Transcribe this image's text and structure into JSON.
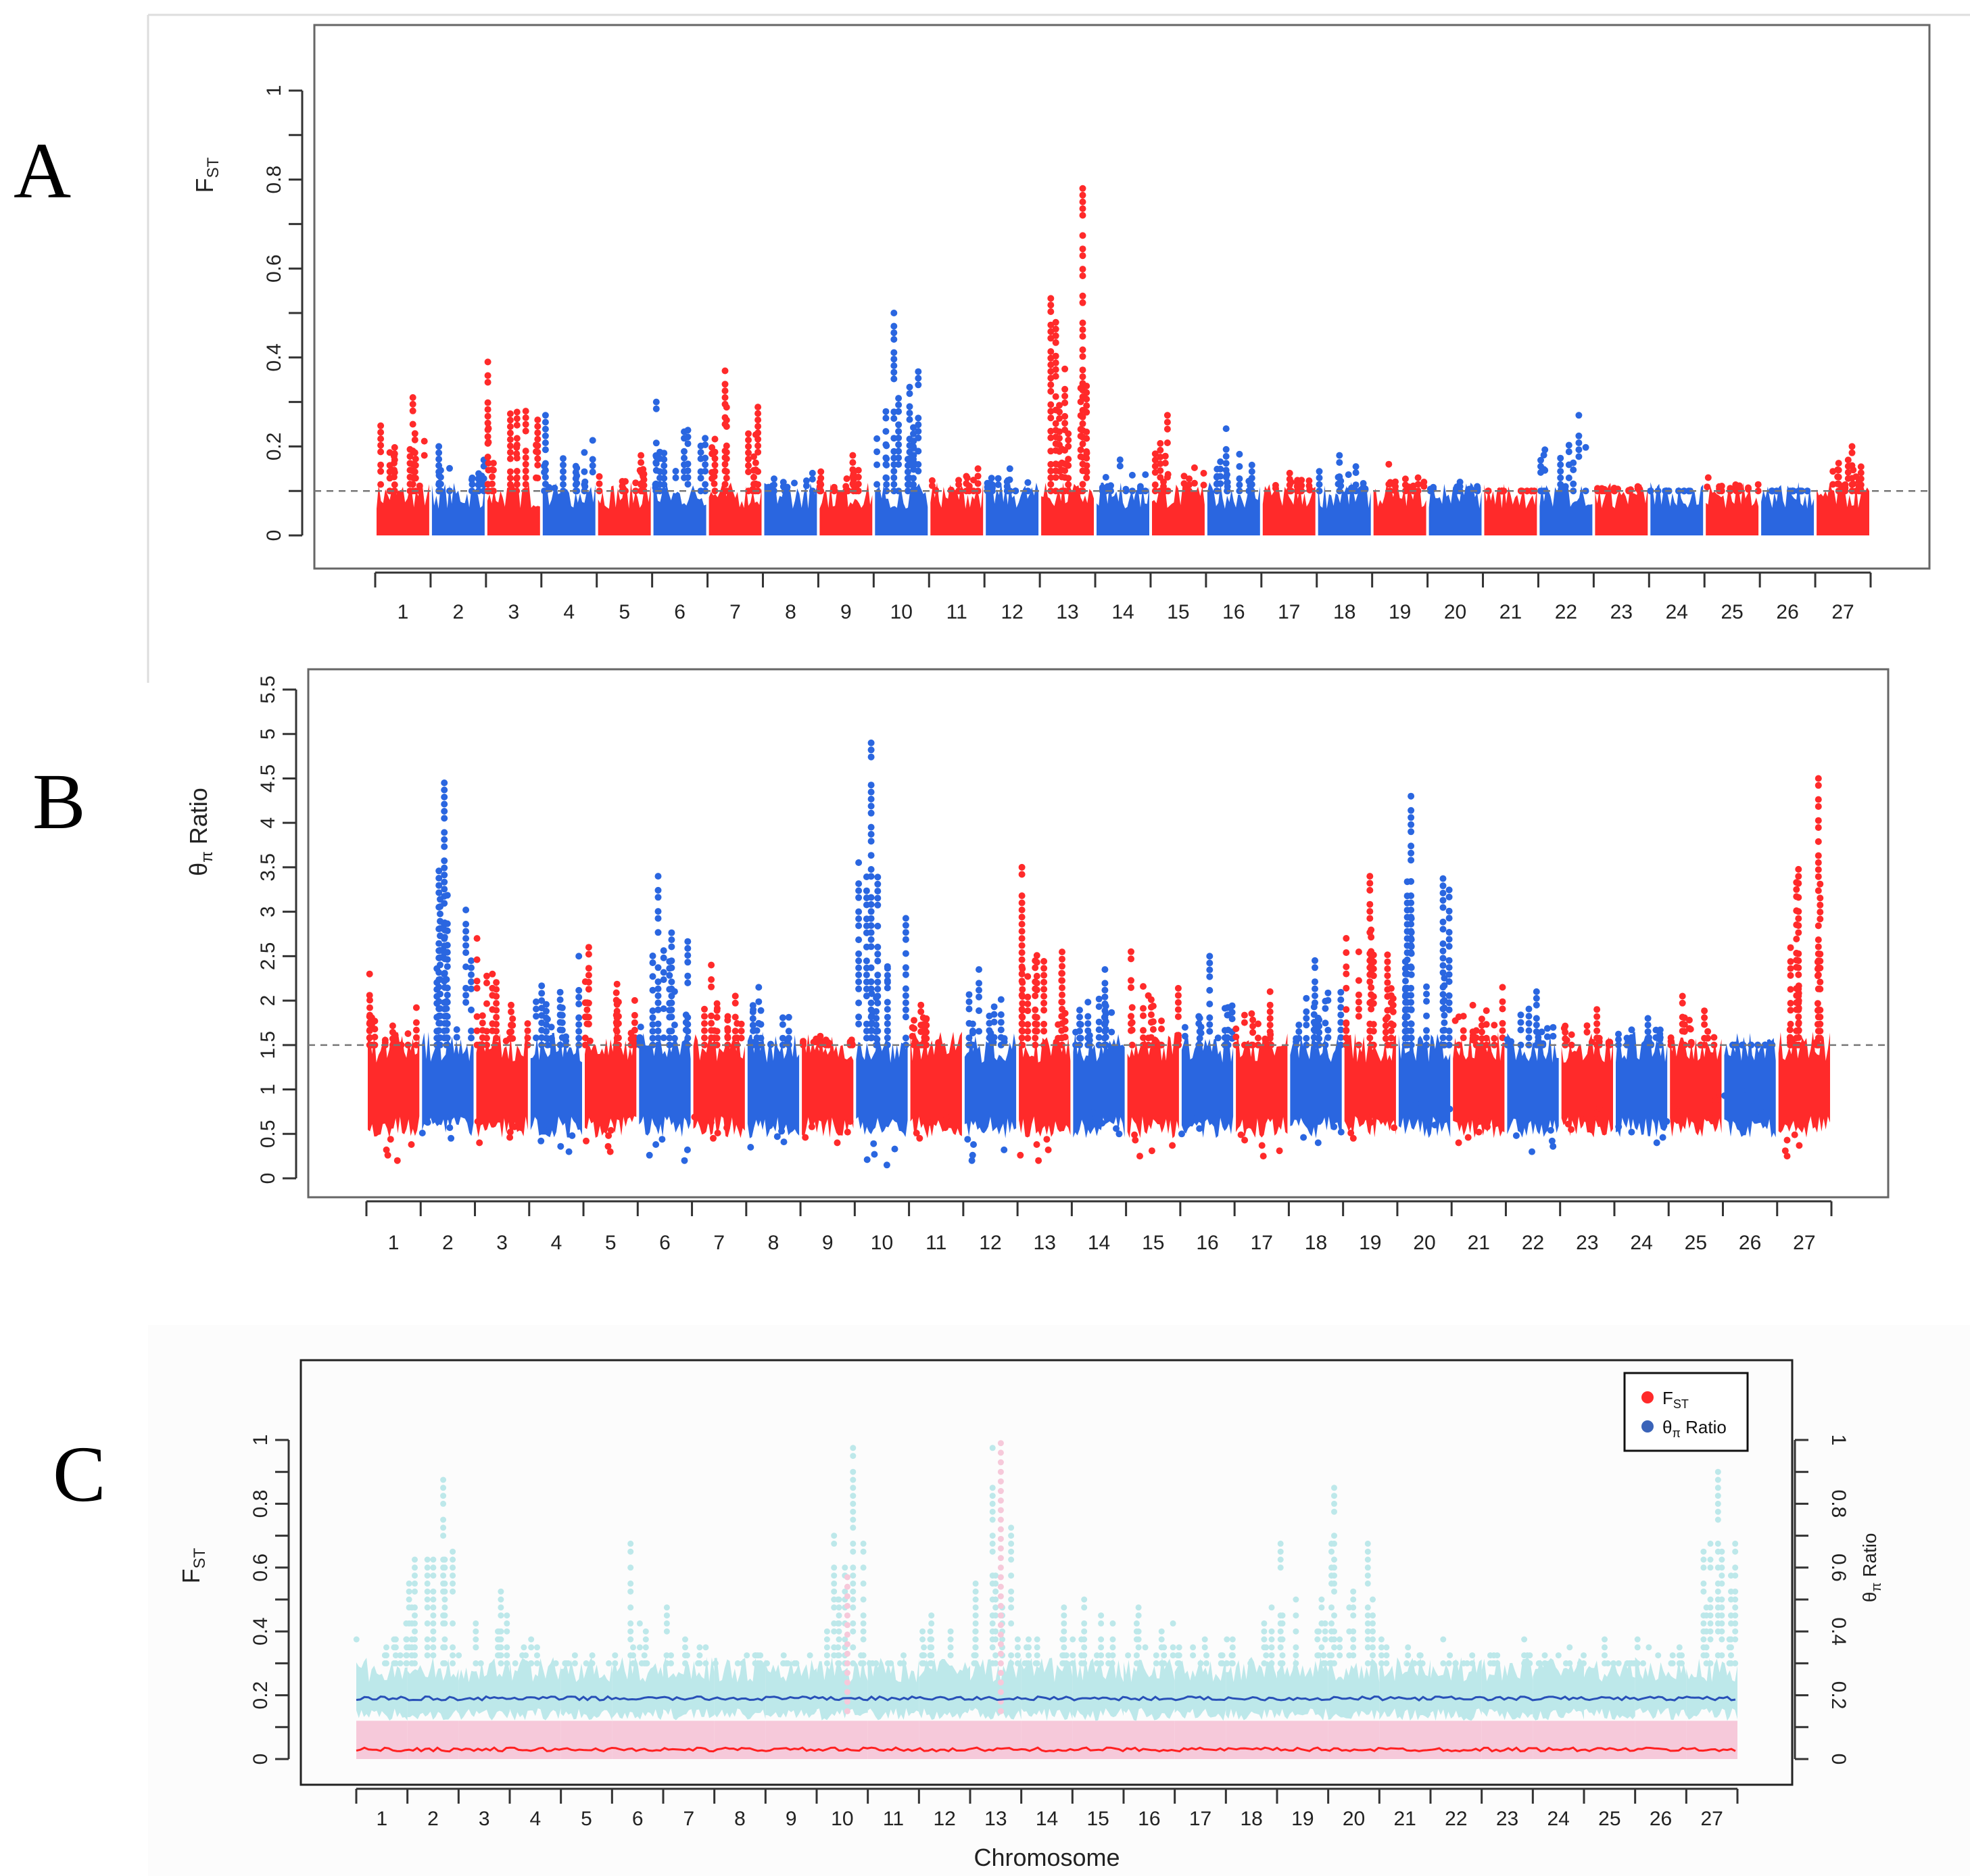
{
  "colors": {
    "red": "#ff2a2a",
    "blue": "#2a66e0",
    "pink": "#f6c9da",
    "cyan": "#bde8ea",
    "fst_line": "#ff2020",
    "ratio_line": "#2850b8"
  },
  "chart_data": [
    {
      "panel": "A",
      "type": "scatter",
      "ylabel": "F",
      "ylabel_sub": "ST",
      "ylim": [
        0,
        1.1
      ],
      "yticks": [
        "0",
        "0.2",
        "0.4",
        "0.6",
        "0.8",
        "1"
      ],
      "ytick_values": [
        0,
        0.2,
        0.4,
        0.6,
        0.8,
        1
      ],
      "threshold": 0.1,
      "categories": [
        "1",
        "2",
        "3",
        "4",
        "5",
        "6",
        "7",
        "8",
        "9",
        "10",
        "11",
        "12",
        "13",
        "14",
        "15",
        "16",
        "17",
        "18",
        "19",
        "20",
        "21",
        "22",
        "23",
        "24",
        "25",
        "26",
        "27"
      ],
      "max_values": [
        0.31,
        0.2,
        0.39,
        0.27,
        0.18,
        0.3,
        0.37,
        0.14,
        0.18,
        0.5,
        0.15,
        0.15,
        0.78,
        0.17,
        0.27,
        0.24,
        0.14,
        0.18,
        0.16,
        0.12,
        0.1,
        0.27,
        0.11,
        0.1,
        0.13,
        0.1,
        0.2
      ],
      "band_top": 0.1,
      "band_bottom": 0
    },
    {
      "panel": "B",
      "type": "scatter",
      "ylabel": "θ",
      "ylabel_sub": "π",
      "ylabel_rest": " Ratio",
      "ylim": [
        0,
        5.5
      ],
      "yticks": [
        "0",
        "0.5",
        "1",
        "1.5",
        "2",
        "2.5",
        "3",
        "3.5",
        "4",
        "4.5",
        "5",
        "5.5"
      ],
      "ytick_values": [
        0,
        0.5,
        1,
        1.5,
        2,
        2.5,
        3,
        3.5,
        4,
        4.5,
        5,
        5.5
      ],
      "threshold": 1.5,
      "categories": [
        "1",
        "2",
        "3",
        "4",
        "5",
        "6",
        "7",
        "8",
        "9",
        "10",
        "11",
        "12",
        "13",
        "14",
        "15",
        "16",
        "17",
        "18",
        "19",
        "20",
        "21",
        "22",
        "23",
        "24",
        "25",
        "26",
        "27"
      ],
      "max_values": [
        2.3,
        4.45,
        2.7,
        2.5,
        2.6,
        3.4,
        2.4,
        2.15,
        1.6,
        4.9,
        1.95,
        2.35,
        3.5,
        2.35,
        2.55,
        2.5,
        2.1,
        2.45,
        3.4,
        4.3,
        2.15,
        2.1,
        1.9,
        1.8,
        2.05,
        1.5,
        4.5
      ],
      "min_values": [
        0.2,
        0.45,
        0.4,
        0.3,
        0.3,
        0.2,
        0.45,
        0.35,
        0.4,
        0.15,
        0.45,
        0.2,
        0.2,
        0.5,
        0.25,
        0.5,
        0.25,
        0.4,
        0.45,
        0.6,
        0.4,
        0.3,
        0.55,
        0.4,
        0.7,
        0.75,
        0.25
      ]
    },
    {
      "panel": "C",
      "type": "scatter",
      "xlabel": "Chromosome",
      "ylabel": "F",
      "ylabel_sub": "ST",
      "y2label": "θ",
      "y2label_sub": "π",
      "y2label_rest": " Ratio",
      "ylim": [
        0,
        1.2
      ],
      "yticks": [
        "0",
        "0.2",
        "0.4",
        "0.6",
        "0.8",
        "1"
      ],
      "ytick_values": [
        0,
        0.2,
        0.4,
        0.6,
        0.8,
        1
      ],
      "legend": [
        {
          "label": "F",
          "sub": "ST"
        },
        {
          "label": "θ",
          "sub": "π",
          "rest": " Ratio"
        }
      ],
      "legend_position": "top-right",
      "categories": [
        "1",
        "2",
        "3",
        "4",
        "5",
        "6",
        "7",
        "8",
        "9",
        "10",
        "11",
        "12",
        "13",
        "14",
        "15",
        "16",
        "17",
        "18",
        "19",
        "20",
        "21",
        "22",
        "23",
        "24",
        "25",
        "26",
        "27"
      ],
      "ratio_max_values": [
        0.45,
        0.9,
        0.55,
        0.4,
        0.35,
        0.68,
        0.48,
        0.35,
        0.35,
        1.0,
        0.35,
        0.47,
        1.0,
        0.48,
        0.52,
        0.5,
        0.4,
        0.5,
        0.68,
        0.87,
        0.4,
        0.38,
        0.4,
        0.37,
        0.38,
        0.4,
        0.92
      ],
      "fst_max_values": [
        0.15,
        0.15,
        0.15,
        0.15,
        0.15,
        0.2,
        0.15,
        0.12,
        0.12,
        0.6,
        0.15,
        0.15,
        1.0,
        0.15,
        0.2,
        0.15,
        0.15,
        0.15,
        0.15,
        0.15,
        0.15,
        0.15,
        0.15,
        0.15,
        0.15,
        0.15,
        0.15
      ],
      "ratio_mean": 0.19,
      "fst_mean": 0.03
    }
  ],
  "panel_labels": [
    "A",
    "B",
    "C"
  ]
}
